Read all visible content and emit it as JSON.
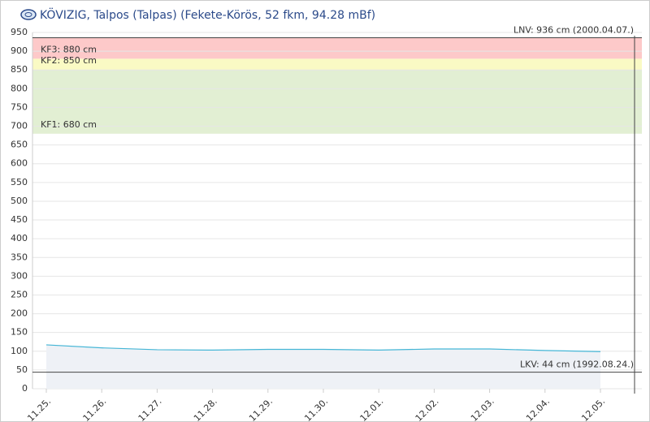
{
  "chart_data": {
    "type": "line",
    "title": "KÖVIZIG, Talpos (Talpas) (Fekete-Körös, 52 fkm, 94.28 mBf)",
    "categories": [
      "11.25.",
      "11.26.",
      "11.27.",
      "11.28.",
      "11.29.",
      "11.30.",
      "12.01.",
      "12.02.",
      "12.03.",
      "12.04.",
      "12.05."
    ],
    "series": [
      {
        "color": "#45b6d6",
        "values": [
          117,
          109,
          104,
          103,
          105,
          105,
          103,
          106,
          106,
          102,
          99
        ]
      }
    ],
    "ylim": [
      0,
      950
    ],
    "yticks": [
      0,
      50,
      100,
      150,
      200,
      250,
      300,
      350,
      400,
      450,
      500,
      550,
      600,
      650,
      700,
      750,
      800,
      850,
      900,
      950
    ],
    "grid": true,
    "thresholds": [
      {
        "value": 680,
        "label": "KF1: 680 cm",
        "color": "#e2efd3"
      },
      {
        "value": 850,
        "label": "KF2: 850 cm",
        "color": "#fafac4"
      },
      {
        "value": 880,
        "label": "KF3: 880 cm",
        "color": "#fdc9c9"
      }
    ],
    "max_level": {
      "value": 936,
      "label": "LNV: 936 cm (2000.04.07.)"
    },
    "min_level": {
      "value": 44,
      "label": "LKV: 44 cm (1992.08.24.)"
    }
  }
}
